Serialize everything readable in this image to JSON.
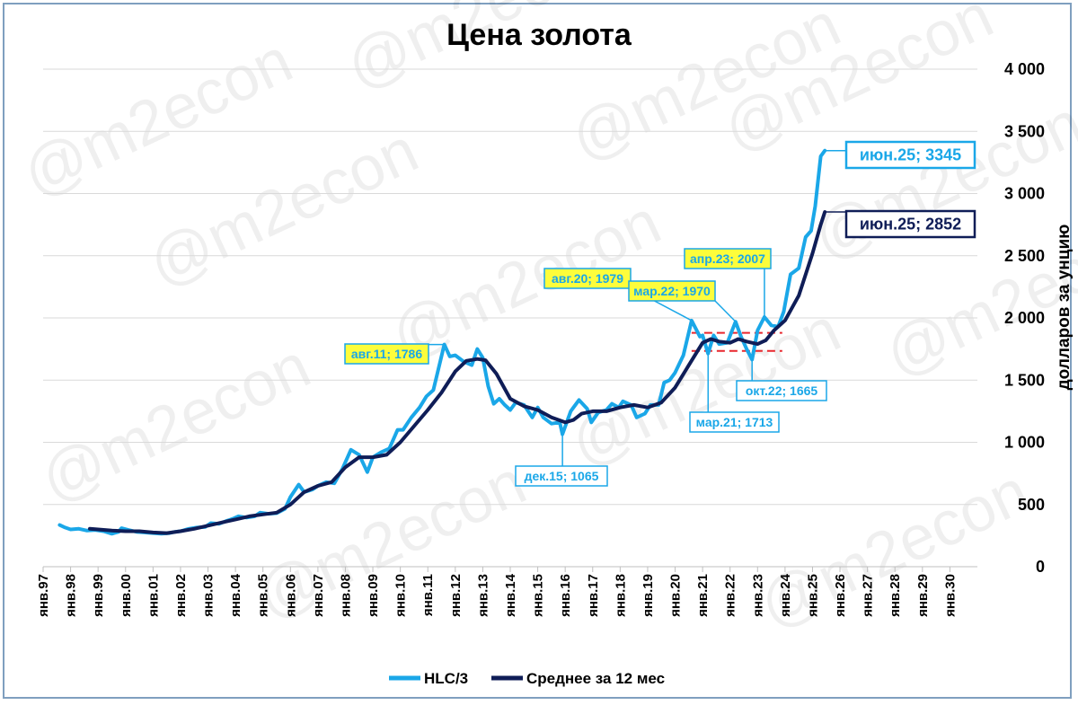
{
  "watermark": "@m2econ",
  "chart_data": {
    "type": "line",
    "title": "Цена золота",
    "ylabel": "долларов за унцию",
    "ylim": [
      0,
      4000
    ],
    "yticks": [
      0,
      500,
      1000,
      1500,
      2000,
      2500,
      3000,
      3500,
      4000
    ],
    "ytick_labels": [
      "0",
      "500",
      "1 000",
      "1 500",
      "2 000",
      "2 500",
      "3 000",
      "3 500",
      "4 000"
    ],
    "xlim": [
      1997,
      2031
    ],
    "xtick_labels": [
      "янв.97",
      "янв.98",
      "янв.99",
      "янв.00",
      "янв.01",
      "янв.02",
      "янв.03",
      "янв.04",
      "янв.05",
      "янв.06",
      "янв.07",
      "янв.08",
      "янв.09",
      "янв.10",
      "янв.11",
      "янв.12",
      "янв.13",
      "янв.14",
      "янв.15",
      "янв.16",
      "янв.17",
      "янв.18",
      "янв.19",
      "янв.20",
      "янв.21",
      "янв.22",
      "янв.23",
      "янв.24",
      "янв.25",
      "янв.26",
      "янв.27",
      "янв.28",
      "янв.29",
      "янв.30"
    ],
    "legend_position": "bottom",
    "grid": "horizontal",
    "series": [
      {
        "name": "HLC/3",
        "color": "#1aa7e8",
        "points": [
          [
            1997.6,
            335
          ],
          [
            1997.8,
            315
          ],
          [
            1998.0,
            300
          ],
          [
            1998.3,
            305
          ],
          [
            1998.6,
            290
          ],
          [
            1998.9,
            295
          ],
          [
            1999.2,
            285
          ],
          [
            1999.5,
            265
          ],
          [
            1999.75,
            280
          ],
          [
            1999.85,
            310
          ],
          [
            2000.1,
            295
          ],
          [
            2000.4,
            280
          ],
          [
            2000.7,
            275
          ],
          [
            2001.0,
            270
          ],
          [
            2001.3,
            265
          ],
          [
            2001.6,
            270
          ],
          [
            2001.8,
            280
          ],
          [
            2002.0,
            285
          ],
          [
            2002.3,
            305
          ],
          [
            2002.6,
            315
          ],
          [
            2002.9,
            320
          ],
          [
            2003.1,
            350
          ],
          [
            2003.4,
            345
          ],
          [
            2003.7,
            370
          ],
          [
            2003.9,
            385
          ],
          [
            2004.1,
            405
          ],
          [
            2004.4,
            395
          ],
          [
            2004.7,
            405
          ],
          [
            2004.9,
            435
          ],
          [
            2005.2,
            425
          ],
          [
            2005.5,
            430
          ],
          [
            2005.8,
            465
          ],
          [
            2006.0,
            560
          ],
          [
            2006.3,
            660
          ],
          [
            2006.5,
            600
          ],
          [
            2006.8,
            620
          ],
          [
            2007.0,
            650
          ],
          [
            2007.3,
            680
          ],
          [
            2007.6,
            670
          ],
          [
            2007.9,
            790
          ],
          [
            2008.2,
            940
          ],
          [
            2008.5,
            900
          ],
          [
            2008.8,
            760
          ],
          [
            2009.0,
            880
          ],
          [
            2009.3,
            920
          ],
          [
            2009.6,
            950
          ],
          [
            2009.9,
            1100
          ],
          [
            2010.1,
            1100
          ],
          [
            2010.4,
            1200
          ],
          [
            2010.7,
            1280
          ],
          [
            2010.95,
            1370
          ],
          [
            2011.2,
            1420
          ],
          [
            2011.6,
            1786
          ],
          [
            2011.8,
            1690
          ],
          [
            2012.0,
            1700
          ],
          [
            2012.3,
            1650
          ],
          [
            2012.6,
            1620
          ],
          [
            2012.8,
            1750
          ],
          [
            2013.0,
            1680
          ],
          [
            2013.2,
            1450
          ],
          [
            2013.4,
            1310
          ],
          [
            2013.6,
            1350
          ],
          [
            2013.8,
            1300
          ],
          [
            2014.0,
            1260
          ],
          [
            2014.2,
            1320
          ],
          [
            2014.5,
            1300
          ],
          [
            2014.8,
            1200
          ],
          [
            2015.0,
            1280
          ],
          [
            2015.2,
            1200
          ],
          [
            2015.5,
            1150
          ],
          [
            2015.8,
            1160
          ],
          [
            2015.9,
            1065
          ],
          [
            2016.2,
            1250
          ],
          [
            2016.5,
            1340
          ],
          [
            2016.8,
            1270
          ],
          [
            2016.95,
            1160
          ],
          [
            2017.2,
            1240
          ],
          [
            2017.5,
            1260
          ],
          [
            2017.7,
            1310
          ],
          [
            2017.95,
            1280
          ],
          [
            2018.1,
            1330
          ],
          [
            2018.4,
            1300
          ],
          [
            2018.6,
            1200
          ],
          [
            2018.9,
            1230
          ],
          [
            2019.1,
            1300
          ],
          [
            2019.4,
            1300
          ],
          [
            2019.6,
            1480
          ],
          [
            2019.8,
            1500
          ],
          [
            2020.0,
            1560
          ],
          [
            2020.3,
            1700
          ],
          [
            2020.6,
            1979
          ],
          [
            2020.9,
            1850
          ],
          [
            2021.0,
            1860
          ],
          [
            2021.2,
            1713
          ],
          [
            2021.4,
            1860
          ],
          [
            2021.6,
            1790
          ],
          [
            2021.9,
            1800
          ],
          [
            2022.2,
            1970
          ],
          [
            2022.4,
            1850
          ],
          [
            2022.6,
            1750
          ],
          [
            2022.8,
            1665
          ],
          [
            2023.0,
            1900
          ],
          [
            2023.25,
            2007
          ],
          [
            2023.5,
            1940
          ],
          [
            2023.75,
            1930
          ],
          [
            2023.95,
            2050
          ],
          [
            2024.2,
            2350
          ],
          [
            2024.5,
            2400
          ],
          [
            2024.75,
            2650
          ],
          [
            2024.95,
            2700
          ],
          [
            2025.1,
            2900
          ],
          [
            2025.3,
            3300
          ],
          [
            2025.45,
            3345
          ]
        ]
      },
      {
        "name": "Среднее за 12 мес",
        "color": "#0f1d57",
        "points": [
          [
            1998.7,
            305
          ],
          [
            1999.0,
            300
          ],
          [
            1999.5,
            290
          ],
          [
            2000.0,
            285
          ],
          [
            2000.5,
            285
          ],
          [
            2001.0,
            275
          ],
          [
            2001.5,
            270
          ],
          [
            2002.0,
            285
          ],
          [
            2002.5,
            305
          ],
          [
            2003.0,
            330
          ],
          [
            2003.5,
            355
          ],
          [
            2004.0,
            380
          ],
          [
            2004.5,
            405
          ],
          [
            2005.0,
            420
          ],
          [
            2005.5,
            435
          ],
          [
            2006.0,
            500
          ],
          [
            2006.5,
            600
          ],
          [
            2007.0,
            650
          ],
          [
            2007.5,
            680
          ],
          [
            2008.0,
            800
          ],
          [
            2008.5,
            880
          ],
          [
            2009.0,
            880
          ],
          [
            2009.5,
            900
          ],
          [
            2010.0,
            1000
          ],
          [
            2010.5,
            1130
          ],
          [
            2011.0,
            1260
          ],
          [
            2011.5,
            1400
          ],
          [
            2012.0,
            1570
          ],
          [
            2012.4,
            1655
          ],
          [
            2012.8,
            1670
          ],
          [
            2013.1,
            1660
          ],
          [
            2013.5,
            1550
          ],
          [
            2014.0,
            1350
          ],
          [
            2014.5,
            1290
          ],
          [
            2015.0,
            1260
          ],
          [
            2015.5,
            1200
          ],
          [
            2016.0,
            1160
          ],
          [
            2016.3,
            1180
          ],
          [
            2016.6,
            1230
          ],
          [
            2017.0,
            1250
          ],
          [
            2017.5,
            1250
          ],
          [
            2018.0,
            1280
          ],
          [
            2018.5,
            1300
          ],
          [
            2019.0,
            1280
          ],
          [
            2019.5,
            1320
          ],
          [
            2020.0,
            1440
          ],
          [
            2020.5,
            1620
          ],
          [
            2021.0,
            1800
          ],
          [
            2021.3,
            1830
          ],
          [
            2021.6,
            1810
          ],
          [
            2022.0,
            1800
          ],
          [
            2022.3,
            1830
          ],
          [
            2022.6,
            1810
          ],
          [
            2023.0,
            1790
          ],
          [
            2023.3,
            1820
          ],
          [
            2023.6,
            1900
          ],
          [
            2024.0,
            1980
          ],
          [
            2024.5,
            2180
          ],
          [
            2025.0,
            2520
          ],
          [
            2025.3,
            2750
          ],
          [
            2025.45,
            2852
          ]
        ]
      }
    ],
    "support_lines": [
      {
        "y": 1880,
        "x": [
          2020.6,
          2023.9
        ],
        "color": "#e8262d"
      },
      {
        "y": 1735,
        "x": [
          2020.6,
          2023.9
        ],
        "color": "#e8262d"
      }
    ],
    "annotations": [
      {
        "text": "авг.11; 1786",
        "x": 2011.6,
        "y": 1786,
        "style": "yellow"
      },
      {
        "text": "авг.20; 1979",
        "x": 2020.6,
        "y": 1979,
        "style": "yellow"
      },
      {
        "text": "мар.22; 1970",
        "x": 2022.2,
        "y": 1970,
        "style": "yellow"
      },
      {
        "text": "апр.23; 2007",
        "x": 2023.25,
        "y": 2007,
        "style": "yellow"
      },
      {
        "text": "дек.15; 1065",
        "x": 2015.9,
        "y": 1065,
        "style": "light"
      },
      {
        "text": "мар.21; 1713",
        "x": 2021.2,
        "y": 1713,
        "style": "light"
      },
      {
        "text": "окт.22; 1665",
        "x": 2022.8,
        "y": 1665,
        "style": "light"
      },
      {
        "text": "июн.25; 3345",
        "x": 2025.45,
        "y": 3345,
        "style": "end-light"
      },
      {
        "text": "июн.25; 2852",
        "x": 2025.45,
        "y": 2852,
        "style": "end-dark"
      }
    ]
  }
}
